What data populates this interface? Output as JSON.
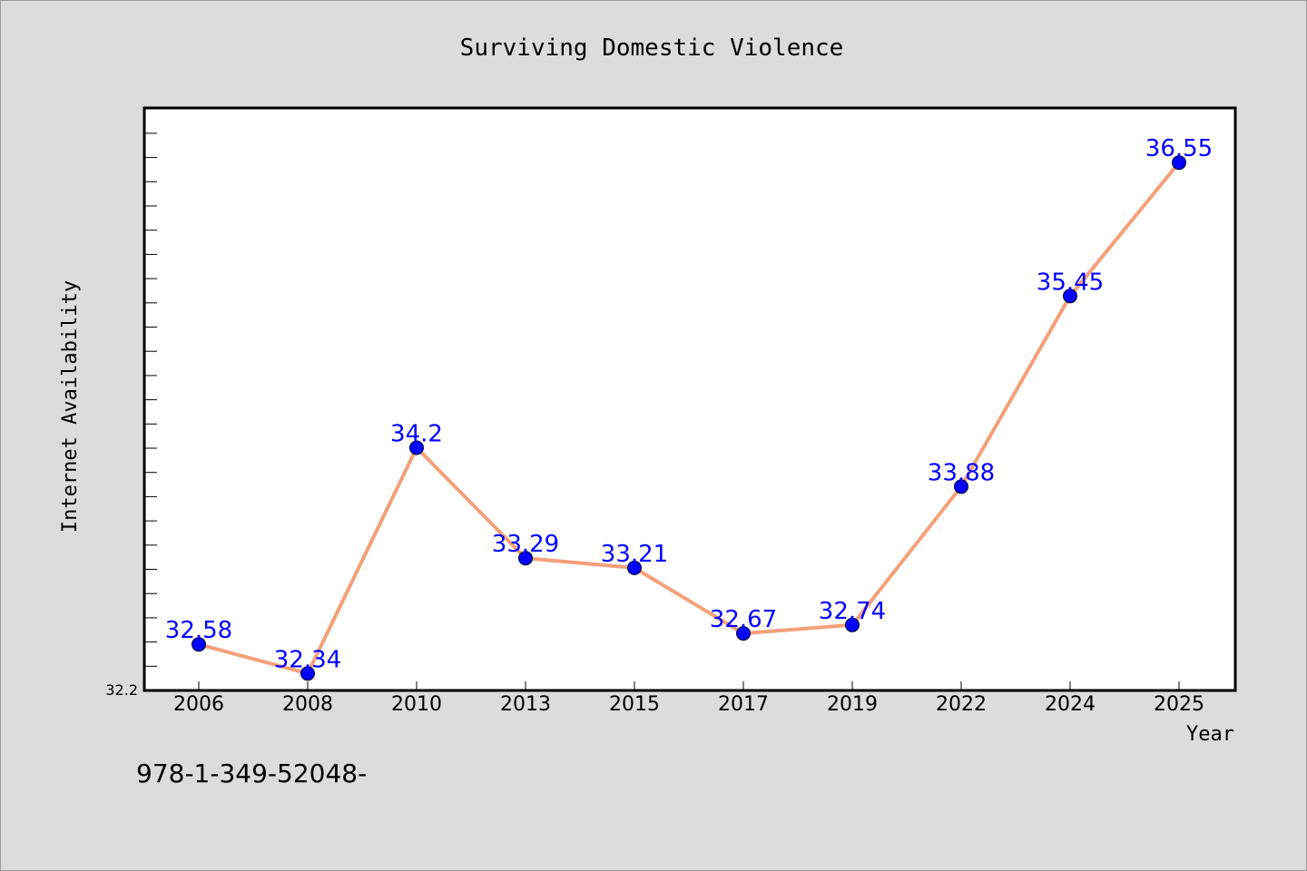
{
  "chart_data": {
    "type": "line",
    "title": "Surviving Domestic Violence",
    "xlabel": "Year",
    "ylabel": "Internet Availability",
    "categories": [
      "2006",
      "2008",
      "2010",
      "2013",
      "2015",
      "2017",
      "2019",
      "2022",
      "2024",
      "2025"
    ],
    "series": [
      {
        "values": [
          32.58,
          32.34,
          34.2,
          33.29,
          33.21,
          32.67,
          32.74,
          33.88,
          35.45,
          36.55
        ],
        "labels": [
          "32.58",
          "32.34",
          "34.2",
          "33.29",
          "33.21",
          "32.67",
          "32.74",
          "33.88",
          "35.45",
          "36.55"
        ]
      }
    ],
    "y_tick_labels": [
      "32.2"
    ],
    "y_min": 32.2,
    "ylim": [
      32.2,
      37.0
    ],
    "grid": false,
    "line_color": "#f4a07a",
    "marker_color": "#0000ff",
    "label_color": "#0000ff"
  },
  "footer": {
    "text": "978-1-349-52048-"
  }
}
